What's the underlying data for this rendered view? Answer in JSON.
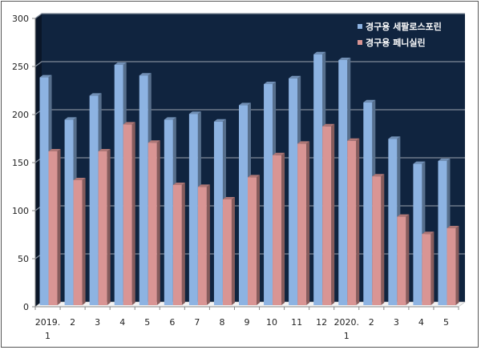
{
  "chart_data": {
    "type": "bar",
    "title": "",
    "xlabel": "",
    "ylabel": "",
    "ylim": [
      0,
      300
    ],
    "yticks": [
      0,
      50,
      100,
      150,
      200,
      250,
      300
    ],
    "grid": true,
    "legend_position": "top-right inside",
    "categories": [
      "2019.\n1",
      "2",
      "3",
      "4",
      "5",
      "6",
      "7",
      "8",
      "9",
      "10",
      "11",
      "12",
      "2020.\n1",
      "2",
      "3",
      "4",
      "5"
    ],
    "category_lines": [
      [
        "2019.",
        "1"
      ],
      [
        "2"
      ],
      [
        "3"
      ],
      [
        "4"
      ],
      [
        "5"
      ],
      [
        "6"
      ],
      [
        "7"
      ],
      [
        "8"
      ],
      [
        "9"
      ],
      [
        "10"
      ],
      [
        "11"
      ],
      [
        "12"
      ],
      [
        "2020.",
        "1"
      ],
      [
        "2"
      ],
      [
        "3"
      ],
      [
        "4"
      ],
      [
        "5"
      ]
    ],
    "series": [
      {
        "name": "경구용 세팔로스포린",
        "color": "#8db3e2",
        "values": [
          237,
          193,
          218,
          250,
          239,
          193,
          199,
          191,
          208,
          230,
          236,
          261,
          255,
          211,
          173,
          147,
          150
        ]
      },
      {
        "name": "경구용 페니실린",
        "color": "#d99594",
        "values": [
          160,
          130,
          160,
          188,
          169,
          125,
          123,
          110,
          133,
          156,
          168,
          186,
          171,
          134,
          92,
          74,
          80
        ]
      }
    ],
    "style": {
      "plot_background": "#10243f",
      "gridline_color": "#7f8a99"
    }
  }
}
